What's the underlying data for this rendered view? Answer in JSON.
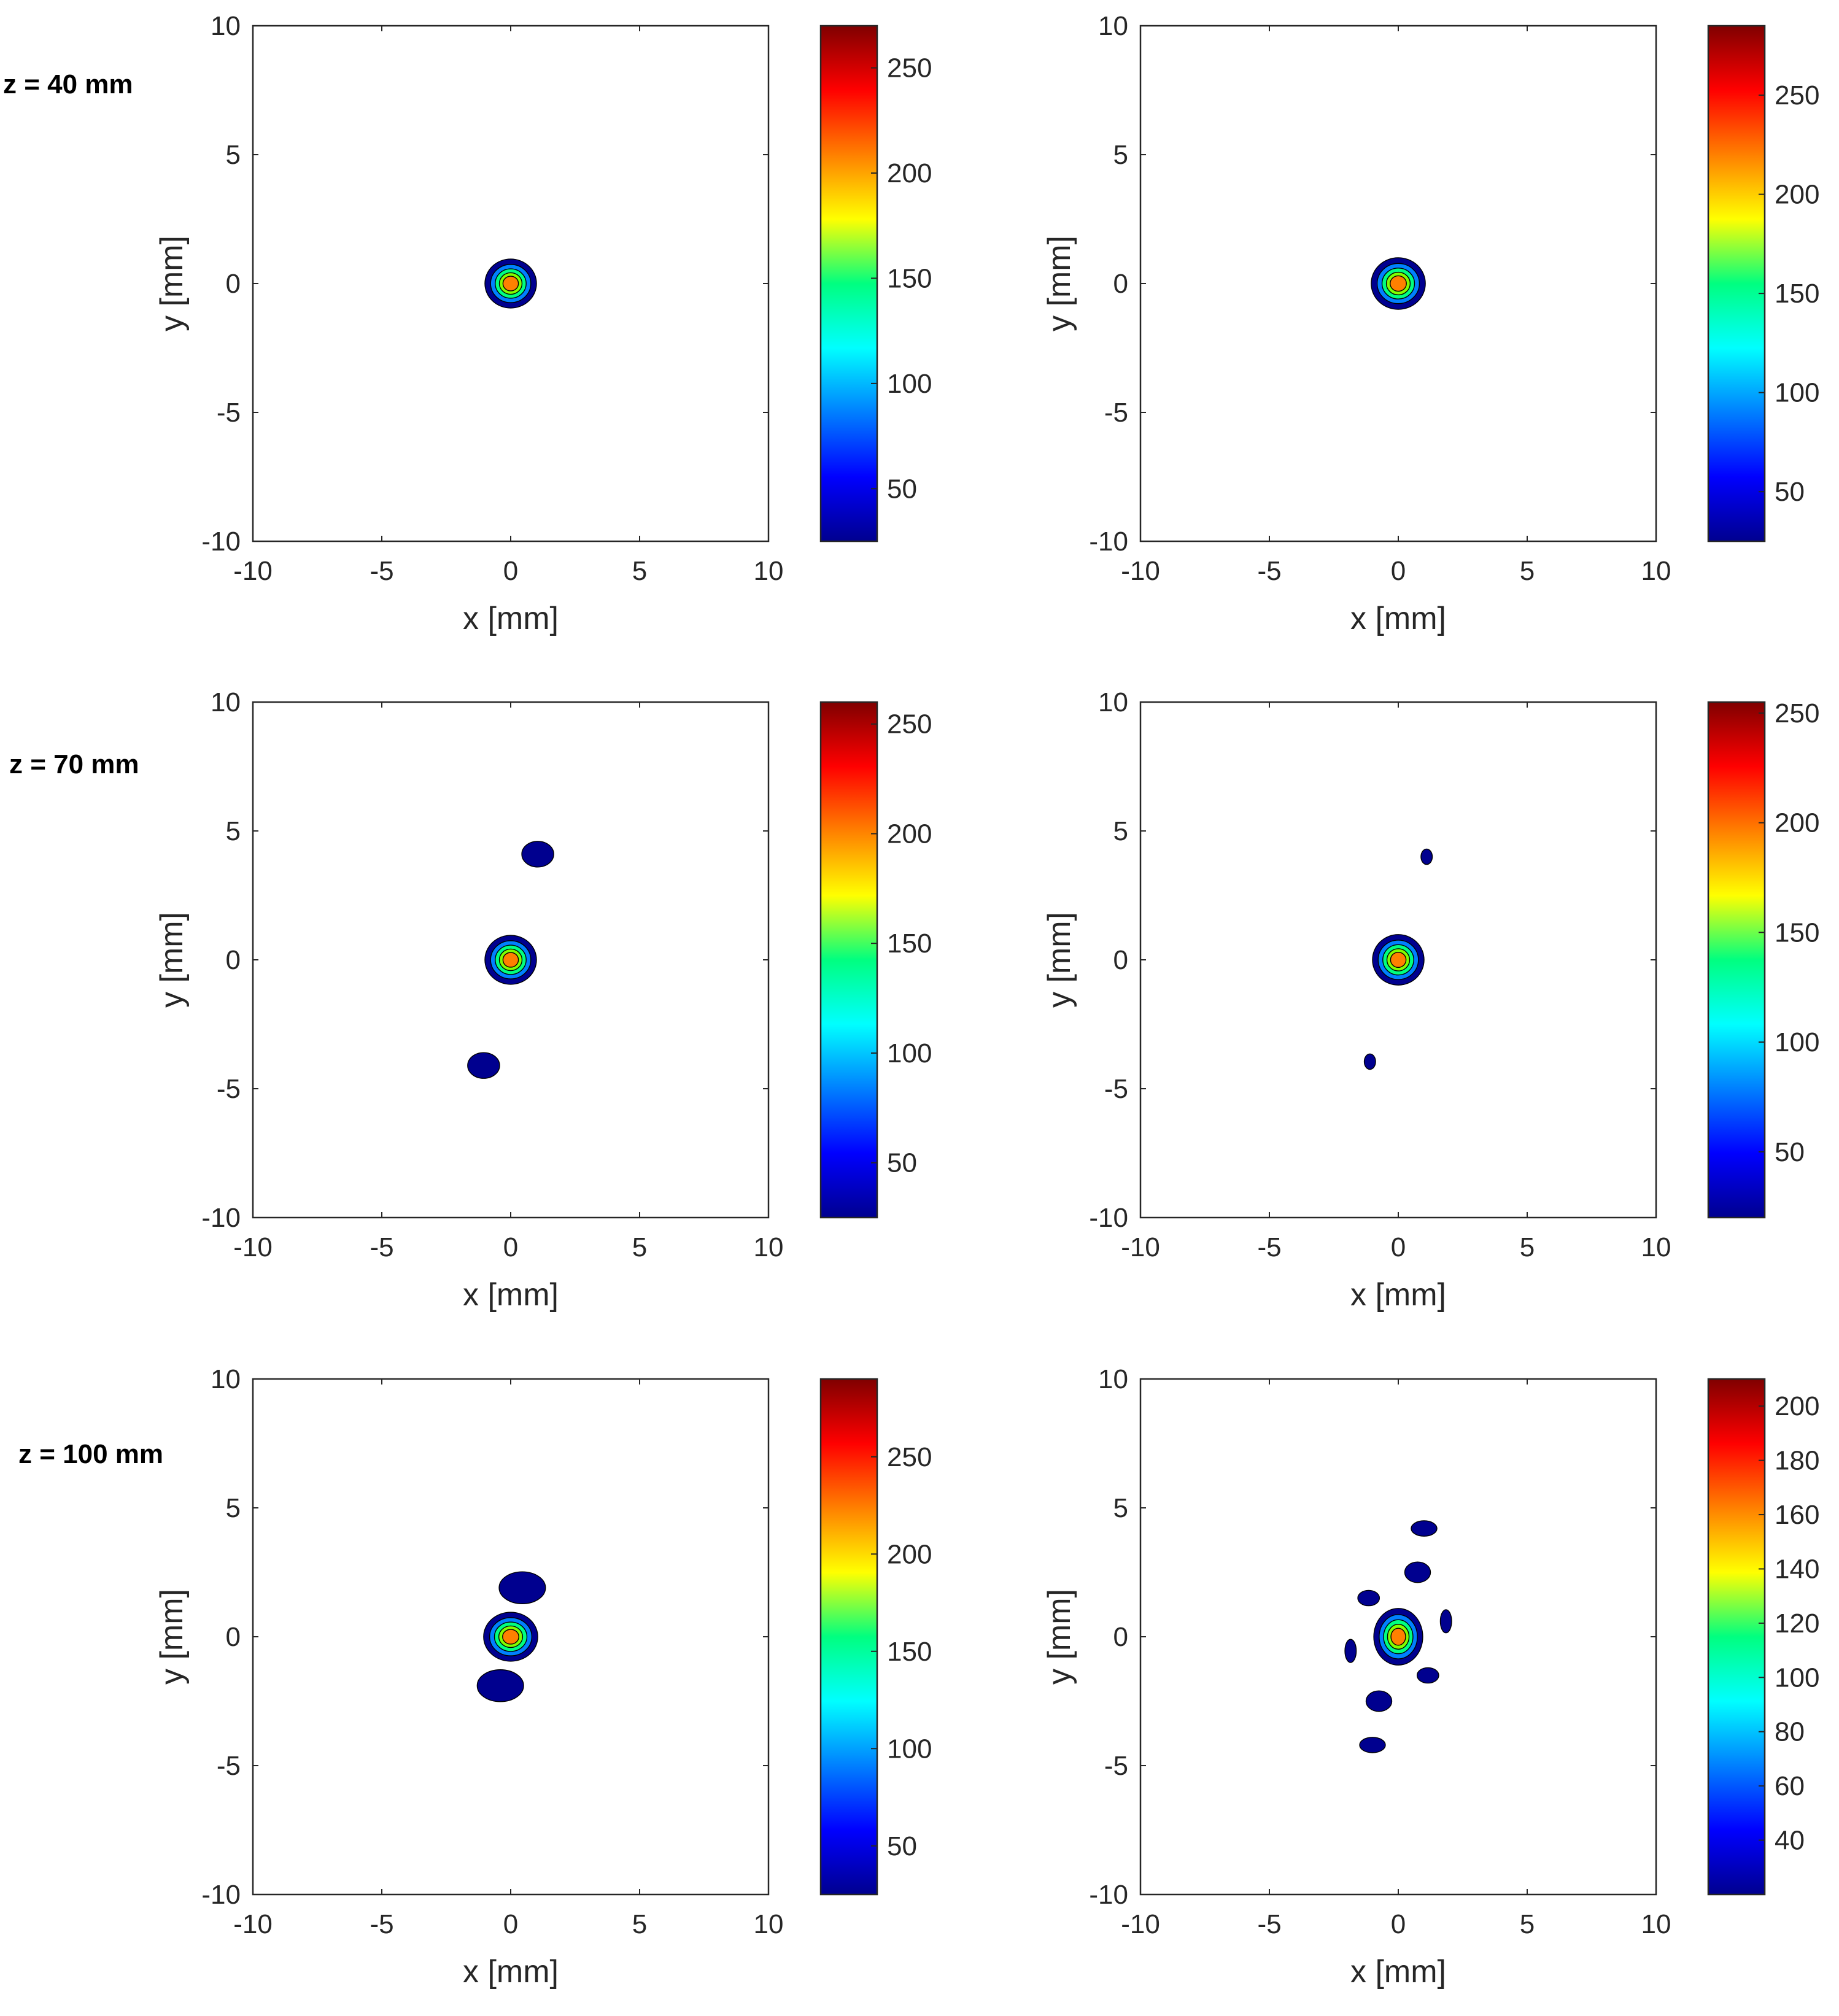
{
  "figure": {
    "row_labels": [
      "z = 40 mm",
      "z = 70 mm",
      "z = 100 mm"
    ]
  },
  "colormap": [
    "#00008f",
    "#0000ff",
    "#0080ff",
    "#00ffff",
    "#00ff80",
    "#80ff00",
    "#ffff00",
    "#ff8000",
    "#ff0000",
    "#800000"
  ],
  "chart_data": [
    {
      "type": "heatmap",
      "row": 0,
      "col": 0,
      "row_label": "z = 40 mm",
      "xlabel": "x [mm]",
      "ylabel": "y [mm]",
      "xlim": [
        -10,
        10
      ],
      "ylim": [
        -10,
        10
      ],
      "xticks": [
        -10,
        -5,
        0,
        5,
        10
      ],
      "yticks": [
        -10,
        -5,
        0,
        5,
        10
      ],
      "colorbar": {
        "range": [
          25,
          270
        ],
        "ticks": [
          50,
          100,
          150,
          200,
          250
        ]
      },
      "lobes": [
        {
          "cx": 0,
          "cy": 0,
          "rx": 1.0,
          "ry": 0.95,
          "level": 0,
          "rings": true
        }
      ]
    },
    {
      "type": "heatmap",
      "row": 0,
      "col": 1,
      "xlabel": "x [mm]",
      "ylabel": "y [mm]",
      "xlim": [
        -10,
        10
      ],
      "ylim": [
        -10,
        10
      ],
      "xticks": [
        -10,
        -5,
        0,
        5,
        10
      ],
      "yticks": [
        -10,
        -5,
        0,
        5,
        10
      ],
      "colorbar": {
        "range": [
          25,
          285
        ],
        "ticks": [
          50,
          100,
          150,
          200,
          250
        ]
      },
      "lobes": [
        {
          "cx": 0,
          "cy": 0,
          "rx": 1.05,
          "ry": 1.0,
          "level": 0,
          "rings": true
        }
      ]
    },
    {
      "type": "heatmap",
      "row": 1,
      "col": 0,
      "row_label": "z = 70 mm",
      "xlabel": "x [mm]",
      "ylabel": "y [mm]",
      "xlim": [
        -10,
        10
      ],
      "ylim": [
        -10,
        10
      ],
      "xticks": [
        -10,
        -5,
        0,
        5,
        10
      ],
      "yticks": [
        -10,
        -5,
        0,
        5,
        10
      ],
      "colorbar": {
        "range": [
          25,
          260
        ],
        "ticks": [
          50,
          100,
          150,
          200,
          250
        ]
      },
      "lobes": [
        {
          "cx": 0,
          "cy": 0,
          "rx": 1.0,
          "ry": 0.95,
          "level": 0,
          "rings": true
        },
        {
          "cx": 1.05,
          "cy": 4.1,
          "rx": 0.62,
          "ry": 0.5,
          "level": 0,
          "rings": false
        },
        {
          "cx": -1.05,
          "cy": -4.1,
          "rx": 0.62,
          "ry": 0.5,
          "level": 0,
          "rings": false
        }
      ]
    },
    {
      "type": "heatmap",
      "row": 1,
      "col": 1,
      "xlabel": "x [mm]",
      "ylabel": "y [mm]",
      "xlim": [
        -10,
        10
      ],
      "ylim": [
        -10,
        10
      ],
      "xticks": [
        -10,
        -5,
        0,
        5,
        10
      ],
      "yticks": [
        -10,
        -5,
        0,
        5,
        10
      ],
      "colorbar": {
        "range": [
          20,
          255
        ],
        "ticks": [
          50,
          100,
          150,
          200,
          250
        ]
      },
      "lobes": [
        {
          "cx": 0,
          "cy": 0,
          "rx": 1.0,
          "ry": 0.98,
          "level": 0,
          "rings": true
        },
        {
          "cx": 1.1,
          "cy": 4.0,
          "rx": 0.22,
          "ry": 0.3,
          "level": 0,
          "rings": false
        },
        {
          "cx": -1.1,
          "cy": -3.95,
          "rx": 0.22,
          "ry": 0.3,
          "level": 0,
          "rings": false
        }
      ]
    },
    {
      "type": "heatmap",
      "row": 2,
      "col": 0,
      "row_label": "z = 100 mm",
      "xlabel": "x [mm]",
      "ylabel": "y [mm]",
      "xlim": [
        -10,
        10
      ],
      "ylim": [
        -10,
        10
      ],
      "xticks": [
        -10,
        -5,
        0,
        5,
        10
      ],
      "yticks": [
        -10,
        -5,
        0,
        5,
        10
      ],
      "colorbar": {
        "range": [
          25,
          290
        ],
        "ticks": [
          50,
          100,
          150,
          200,
          250
        ]
      },
      "lobes": [
        {
          "cx": 0,
          "cy": 0,
          "rx": 1.05,
          "ry": 0.95,
          "level": 0,
          "rings": true
        },
        {
          "cx": 0.45,
          "cy": 1.9,
          "rx": 0.9,
          "ry": 0.62,
          "level": 0,
          "rings": false
        },
        {
          "cx": -0.4,
          "cy": -1.9,
          "rx": 0.9,
          "ry": 0.62,
          "level": 0,
          "rings": false
        }
      ]
    },
    {
      "type": "heatmap",
      "row": 2,
      "col": 1,
      "xlabel": "x [mm]",
      "ylabel": "y [mm]",
      "xlim": [
        -10,
        10
      ],
      "ylim": [
        -10,
        10
      ],
      "xticks": [
        -10,
        -5,
        0,
        5,
        10
      ],
      "yticks": [
        -10,
        -5,
        0,
        5,
        10
      ],
      "colorbar": {
        "range": [
          20,
          210
        ],
        "ticks": [
          40,
          60,
          80,
          100,
          120,
          140,
          160,
          180,
          200
        ]
      },
      "lobes": [
        {
          "cx": 0,
          "cy": 0,
          "rx": 0.95,
          "ry": 1.1,
          "level": 0,
          "rings": true
        },
        {
          "cx": 1.0,
          "cy": 4.2,
          "rx": 0.5,
          "ry": 0.3,
          "level": 0,
          "rings": false
        },
        {
          "cx": 0.75,
          "cy": 2.5,
          "rx": 0.5,
          "ry": 0.4,
          "level": 0,
          "rings": false
        },
        {
          "cx": -1.15,
          "cy": 1.5,
          "rx": 0.42,
          "ry": 0.3,
          "level": 0,
          "rings": false
        },
        {
          "cx": 1.85,
          "cy": 0.6,
          "rx": 0.22,
          "ry": 0.45,
          "level": 0,
          "rings": false
        },
        {
          "cx": -1.85,
          "cy": -0.55,
          "rx": 0.22,
          "ry": 0.45,
          "level": 0,
          "rings": false
        },
        {
          "cx": 1.15,
          "cy": -1.5,
          "rx": 0.42,
          "ry": 0.3,
          "level": 0,
          "rings": false
        },
        {
          "cx": -0.75,
          "cy": -2.5,
          "rx": 0.5,
          "ry": 0.4,
          "level": 0,
          "rings": false
        },
        {
          "cx": -1.0,
          "cy": -4.2,
          "rx": 0.5,
          "ry": 0.3,
          "level": 0,
          "rings": false
        }
      ]
    }
  ]
}
